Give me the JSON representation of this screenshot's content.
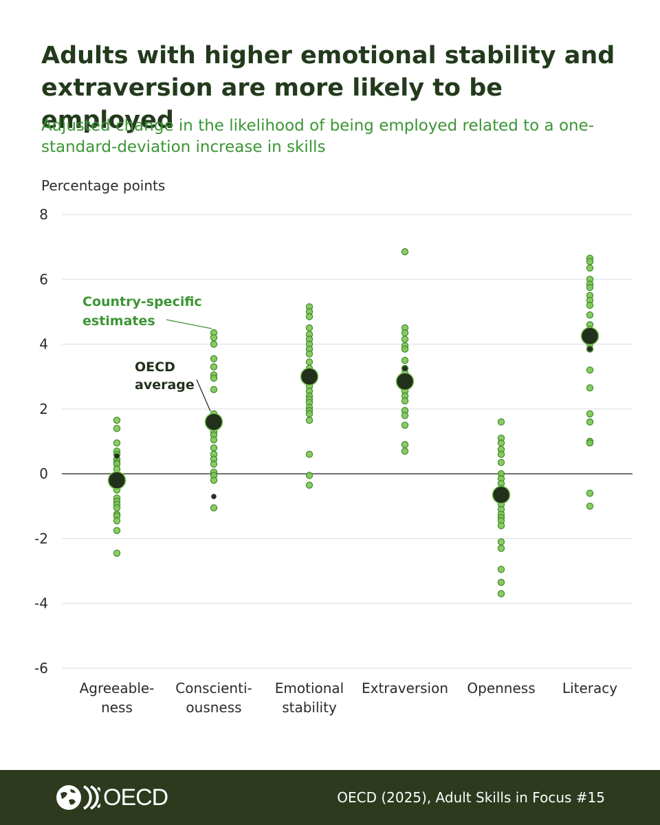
{
  "title": "Adults with higher emotional stability and extraversion are more likely to be employed",
  "subtitle": "Adjusted change in the likelihood of being employed related to a one-standard-deviation increase in skills",
  "footer": {
    "logo_text": "OECD",
    "source": "OECD (2025), Adult Skills in Focus #15"
  },
  "annotations": {
    "country": [
      "Country-specific",
      "estimates"
    ],
    "oecd": [
      "OECD",
      "average"
    ]
  },
  "colors": {
    "dot_fill": "#7cc653",
    "dot_stroke": "#3f8a2a",
    "average": "#22301c",
    "highlight": "#22301c",
    "title": "#233a1d",
    "subtitle": "#3b9534",
    "footer_bg": "#2d3a1e"
  },
  "chart_data": {
    "type": "scatter",
    "ylabel": "Percentage points",
    "ylim": [
      -6,
      8
    ],
    "yticks": [
      8,
      6,
      4,
      2,
      0,
      -2,
      -4,
      -6
    ],
    "grid": true,
    "categories": [
      {
        "label": [
          "Agreeable-",
          "ness"
        ],
        "average": -0.2,
        "highlight": 0.55,
        "countries": [
          1.65,
          1.4,
          0.95,
          0.7,
          0.6,
          0.45,
          0.35,
          0.3,
          0.15,
          -0.05,
          -0.1,
          -0.25,
          -0.35,
          -0.5,
          -0.75,
          -0.85,
          -0.95,
          -1.05,
          -1.25,
          -1.3,
          -1.45,
          -1.75,
          -2.45
        ]
      },
      {
        "label": [
          "Conscienti-",
          "ousness"
        ],
        "average": 1.6,
        "highlight": -0.7,
        "countries": [
          4.35,
          4.2,
          4.0,
          3.55,
          3.3,
          3.05,
          2.95,
          2.6,
          1.85,
          1.75,
          1.55,
          1.3,
          1.2,
          1.05,
          0.8,
          0.6,
          0.45,
          0.3,
          0.05,
          -0.05,
          -0.2,
          -1.05
        ]
      },
      {
        "label": [
          "Emotional",
          "stability"
        ],
        "average": 3.0,
        "highlight": null,
        "countries": [
          5.15,
          5.0,
          4.85,
          4.5,
          4.3,
          4.15,
          4.0,
          3.85,
          3.7,
          3.45,
          3.25,
          3.1,
          2.85,
          2.7,
          2.55,
          2.4,
          2.3,
          2.2,
          2.05,
          1.95,
          1.85,
          1.65,
          0.6,
          -0.05,
          -0.35
        ]
      },
      {
        "label": [
          "Extraversion"
        ],
        "average": 2.85,
        "highlight": 3.25,
        "countries": [
          6.85,
          4.5,
          4.35,
          4.15,
          3.95,
          3.85,
          3.5,
          3.25,
          3.1,
          2.95,
          2.7,
          2.55,
          2.4,
          2.25,
          1.95,
          1.8,
          1.5,
          0.9,
          0.7
        ]
      },
      {
        "label": [
          "Openness"
        ],
        "average": -0.65,
        "highlight": null,
        "countries": [
          1.6,
          1.1,
          0.95,
          0.75,
          0.6,
          0.35,
          0.0,
          -0.15,
          -0.3,
          -0.45,
          -0.6,
          -0.8,
          -0.95,
          -1.1,
          -1.25,
          -1.35,
          -1.45,
          -1.6,
          -2.1,
          -2.3,
          -2.95,
          -3.35,
          -3.7
        ]
      },
      {
        "label": [
          "Literacy"
        ],
        "average": 4.25,
        "highlight": 3.85,
        "countries": [
          6.65,
          6.55,
          6.35,
          6.0,
          5.85,
          5.75,
          5.5,
          5.35,
          5.2,
          4.9,
          4.6,
          4.45,
          4.15,
          4.0,
          3.85,
          3.2,
          2.65,
          1.85,
          1.6,
          1.0,
          0.95,
          -0.6,
          -1.0
        ]
      }
    ]
  }
}
